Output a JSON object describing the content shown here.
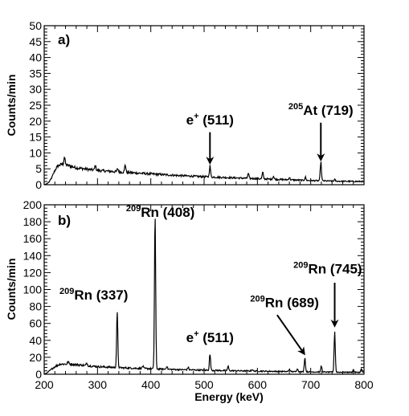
{
  "chart_data": [
    {
      "type": "line",
      "panel_label": "a)",
      "ylabel": "Counts/min",
      "xlabel": "",
      "xlim": [
        200,
        800
      ],
      "ylim": [
        0,
        50
      ],
      "x_ticks": [
        200,
        300,
        400,
        500,
        600,
        700,
        800
      ],
      "y_ticks": [
        0,
        5,
        10,
        15,
        20,
        25,
        30,
        35,
        40,
        45,
        50
      ],
      "y_tick_labels": [
        "0",
        "5",
        "10",
        "15",
        "20",
        "25",
        "30",
        "35",
        "40",
        "45",
        "50"
      ],
      "grid": false,
      "baseline": [
        [
          200,
          0
        ],
        [
          205,
          0.3
        ],
        [
          210,
          1.0
        ],
        [
          215,
          2.5
        ],
        [
          220,
          4.5
        ],
        [
          225,
          5.8
        ],
        [
          232,
          6.4
        ],
        [
          240,
          6.3
        ],
        [
          260,
          5.3
        ],
        [
          300,
          4.5
        ],
        [
          350,
          3.9
        ],
        [
          400,
          3.4
        ],
        [
          450,
          2.9
        ],
        [
          500,
          2.5
        ],
        [
          550,
          2.2
        ],
        [
          600,
          1.9
        ],
        [
          650,
          1.6
        ],
        [
          700,
          1.3
        ],
        [
          750,
          1.1
        ],
        [
          800,
          1.0
        ]
      ],
      "peaks": [
        {
          "x": 238,
          "height": 2.5
        },
        {
          "x": 296,
          "height": 1.5
        },
        {
          "x": 338,
          "height": 1.0
        },
        {
          "x": 352,
          "height": 2.5
        },
        {
          "x": 511,
          "height": 3.5
        },
        {
          "x": 583,
          "height": 1.5
        },
        {
          "x": 610,
          "height": 2.0
        },
        {
          "x": 630,
          "height": 1.0
        },
        {
          "x": 660,
          "height": 0.8
        },
        {
          "x": 690,
          "height": 1.0
        },
        {
          "x": 719,
          "height": 6.0
        },
        {
          "x": 745,
          "height": 0.5
        }
      ],
      "annotations": [
        {
          "sup": "",
          "main": "e",
          "plus": "+",
          "rest": " (511)",
          "text_x": 511,
          "text_y": 19,
          "arrow_from": [
            511,
            16.5
          ],
          "arrow_to": [
            511,
            6.8
          ]
        },
        {
          "sup": "205",
          "main": "At",
          "plus": "",
          "rest": " (719)",
          "text_x": 719,
          "text_y": 22,
          "arrow_from": [
            719,
            19.5
          ],
          "arrow_to": [
            719,
            7.8
          ]
        }
      ]
    },
    {
      "type": "line",
      "panel_label": "b)",
      "ylabel": "Counts/min",
      "xlabel": "Energy (keV)",
      "xlim": [
        200,
        800
      ],
      "ylim": [
        0,
        200
      ],
      "x_ticks": [
        200,
        300,
        400,
        500,
        600,
        700,
        800
      ],
      "x_tick_labels": [
        "200",
        "300",
        "400",
        "500",
        "600",
        "700",
        "800"
      ],
      "y_ticks": [
        0,
        20,
        40,
        60,
        80,
        100,
        120,
        140,
        160,
        180,
        200
      ],
      "y_tick_labels": [
        "0",
        "20",
        "40",
        "60",
        "80",
        "100",
        "120",
        "140",
        "160",
        "180",
        "200"
      ],
      "grid": false,
      "baseline": [
        [
          200,
          0
        ],
        [
          205,
          1.5
        ],
        [
          212,
          5
        ],
        [
          220,
          9
        ],
        [
          230,
          12
        ],
        [
          250,
          12
        ],
        [
          300,
          9
        ],
        [
          350,
          7.5
        ],
        [
          400,
          6.5
        ],
        [
          450,
          5.5
        ],
        [
          500,
          4.8
        ],
        [
          550,
          4.2
        ],
        [
          600,
          3.7
        ],
        [
          650,
          3.2
        ],
        [
          700,
          2.8
        ],
        [
          750,
          2.4
        ],
        [
          800,
          2.2
        ]
      ],
      "peaks": [
        {
          "x": 245,
          "height": 3
        },
        {
          "x": 280,
          "height": 3
        },
        {
          "x": 337,
          "height": 64
        },
        {
          "x": 385,
          "height": 3
        },
        {
          "x": 408,
          "height": 182
        },
        {
          "x": 430,
          "height": 4
        },
        {
          "x": 470,
          "height": 3
        },
        {
          "x": 511,
          "height": 19
        },
        {
          "x": 545,
          "height": 5
        },
        {
          "x": 590,
          "height": 2
        },
        {
          "x": 660,
          "height": 3
        },
        {
          "x": 675,
          "height": 4
        },
        {
          "x": 689,
          "height": 17
        },
        {
          "x": 720,
          "height": 7
        },
        {
          "x": 745,
          "height": 48
        },
        {
          "x": 780,
          "height": 3
        },
        {
          "x": 795,
          "height": 4
        }
      ],
      "annotations": [
        {
          "sup": "209",
          "main": "Rn",
          "plus": "",
          "rest": " (408)",
          "text_x": 418,
          "text_y": 186,
          "arrow_from": null,
          "arrow_to": null
        },
        {
          "sup": "209",
          "main": "Rn",
          "plus": "",
          "rest": " (337)",
          "text_x": 293,
          "text_y": 88,
          "arrow_from": null,
          "arrow_to": null
        },
        {
          "sup": "",
          "main": "e",
          "plus": "+",
          "rest": " (511)",
          "text_x": 511,
          "text_y": 38,
          "arrow_from": null,
          "arrow_to": null
        },
        {
          "sup": "209",
          "main": "Rn",
          "plus": "",
          "rest": " (689)",
          "text_x": 651,
          "text_y": 79,
          "arrow_from": [
            637,
            70
          ],
          "arrow_to": [
            688,
            24
          ]
        },
        {
          "sup": "209",
          "main": "Rn",
          "plus": "",
          "rest": " (745)",
          "text_x": 732,
          "text_y": 119,
          "arrow_from": [
            745,
            108
          ],
          "arrow_to": [
            745,
            57
          ]
        }
      ]
    }
  ]
}
